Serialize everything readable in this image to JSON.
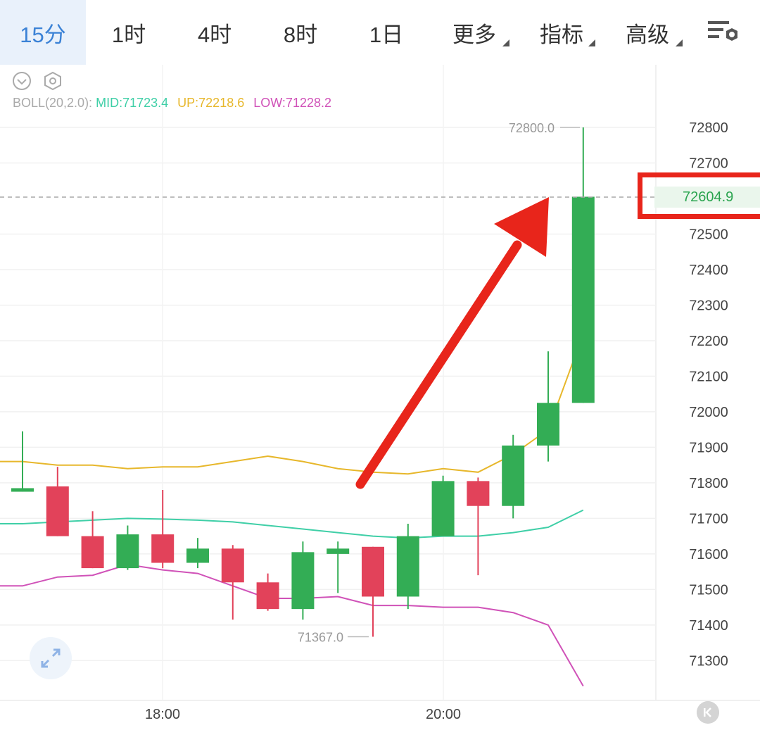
{
  "tabs": [
    {
      "label": "15分",
      "active": true
    },
    {
      "label": "1时"
    },
    {
      "label": "4时"
    },
    {
      "label": "8时"
    },
    {
      "label": "1日"
    },
    {
      "label": "更多",
      "dropdown": true
    },
    {
      "label": "指标",
      "dropdown": true
    },
    {
      "label": "高级",
      "dropdown": true
    }
  ],
  "icons": {
    "settings": "chart-settings-icon",
    "collapse": "chevron-down-circle-icon",
    "gear": "hexagon-gear-icon",
    "expand": "expand-arrows-icon",
    "back": "skip-to-start-icon"
  },
  "indicator": {
    "name": "BOLL(20,2.0):",
    "mid": "MID:71723.4",
    "up": "UP:72218.6",
    "low": "LOW:71228.2"
  },
  "current_price": "72604.9",
  "colors": {
    "up_candle": "#33ad55",
    "down_candle": "#e2425a",
    "mid_line": "#3fcfa7",
    "up_line": "#e7b72b",
    "low_line": "#d052b8",
    "annotation": "#e8251b",
    "active_tab": "#3b82d6"
  },
  "chart_data": {
    "type": "candlestick",
    "y_ticks": [
      "72800",
      "72700",
      "72500",
      "72400",
      "72300",
      "72200",
      "72100",
      "72000",
      "71900",
      "71800",
      "71700",
      "71600",
      "71500",
      "71400",
      "71300"
    ],
    "x_ticks": [
      "18:00",
      "20:00"
    ],
    "high_label": "72800.0",
    "low_label": "71367.0",
    "ylim": [
      71230,
      72830
    ],
    "candles": [
      {
        "o": 71775,
        "h": 71945,
        "l": 71775,
        "c": 71785
      },
      {
        "o": 71790,
        "h": 71845,
        "l": 71650,
        "c": 71650
      },
      {
        "o": 71650,
        "h": 71720,
        "l": 71560,
        "c": 71560
      },
      {
        "o": 71560,
        "h": 71680,
        "l": 71555,
        "c": 71655
      },
      {
        "o": 71655,
        "h": 71780,
        "l": 71560,
        "c": 71575
      },
      {
        "o": 71575,
        "h": 71645,
        "l": 71560,
        "c": 71615
      },
      {
        "o": 71615,
        "h": 71625,
        "l": 71415,
        "c": 71520
      },
      {
        "o": 71520,
        "h": 71545,
        "l": 71440,
        "c": 71445
      },
      {
        "o": 71445,
        "h": 71635,
        "l": 71415,
        "c": 71605
      },
      {
        "o": 71600,
        "h": 71635,
        "l": 71490,
        "c": 71615
      },
      {
        "o": 71620,
        "h": 71620,
        "l": 71367,
        "c": 71480
      },
      {
        "o": 71480,
        "h": 71685,
        "l": 71445,
        "c": 71650
      },
      {
        "o": 71650,
        "h": 71820,
        "l": 71650,
        "c": 71805
      },
      {
        "o": 71805,
        "h": 71815,
        "l": 71540,
        "c": 71735
      },
      {
        "o": 71735,
        "h": 71935,
        "l": 71700,
        "c": 71905
      },
      {
        "o": 71905,
        "h": 72170,
        "l": 71860,
        "c": 72025
      },
      {
        "o": 72025,
        "h": 72800,
        "l": 72025,
        "c": 72605
      }
    ],
    "boll_up": [
      71860,
      71850,
      71850,
      71840,
      71845,
      71845,
      71860,
      71875,
      71860,
      71840,
      71830,
      71825,
      71840,
      71830,
      71880,
      71950,
      72218.6
    ],
    "boll_mid": [
      71685,
      71690,
      71695,
      71700,
      71698,
      71695,
      71690,
      71680,
      71670,
      71660,
      71650,
      71645,
      71650,
      71650,
      71660,
      71675,
      71723.4
    ],
    "boll_low": [
      71510,
      71535,
      71540,
      71570,
      71555,
      71545,
      71510,
      71475,
      71475,
      71480,
      71455,
      71455,
      71450,
      71450,
      71435,
      71400,
      71228.2
    ]
  }
}
